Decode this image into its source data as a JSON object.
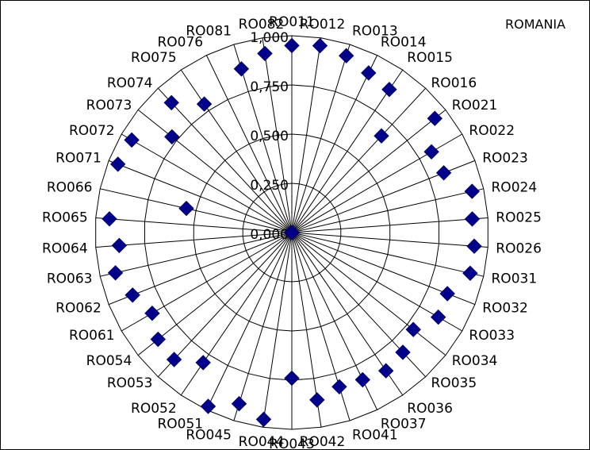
{
  "chart_data": {
    "type": "radar",
    "title": "ROMANIA",
    "rlim": [
      0,
      1
    ],
    "r_ticks": [
      "0,000",
      "0,250",
      "0,500",
      "0,750",
      "1,000"
    ],
    "grid": true,
    "marker": "diamond",
    "series_color": "#00008B",
    "categories": [
      "RO011",
      "RO012",
      "RO013",
      "RO014",
      "RO015",
      "RO016",
      "RO021",
      "RO022",
      "RO023",
      "RO024",
      "RO025",
      "RO026",
      "RO031",
      "RO032",
      "RO033",
      "RO034",
      "RO035",
      "RO036",
      "RO037",
      "RO041",
      "RO042",
      "RO043",
      "RO044",
      "RO045",
      "RO051",
      "RO052",
      "RO053",
      "RO054",
      "RO061",
      "RO062",
      "RO063",
      "RO064",
      "RO065",
      "RO066",
      "RO071",
      "RO072",
      "RO073",
      "RO074",
      "RO075",
      "RO076",
      "RO081",
      "RO082"
    ],
    "values": [
      0.95,
      0.96,
      0.94,
      0.9,
      0.88,
      0.67,
      0.93,
      0.82,
      0.83,
      0.94,
      0.92,
      0.93,
      0.93,
      0.85,
      0.86,
      0.79,
      0.83,
      0.85,
      0.83,
      0.82,
      0.86,
      0.74,
      0.96,
      0.91,
      0.98,
      0.8,
      0.88,
      0.87,
      0.82,
      0.87,
      0.92,
      0.88,
      0.93,
      0.55,
      0.95,
      0.94,
      0.78,
      0.9,
      0.79,
      0.0,
      0.87,
      0.92
    ]
  }
}
